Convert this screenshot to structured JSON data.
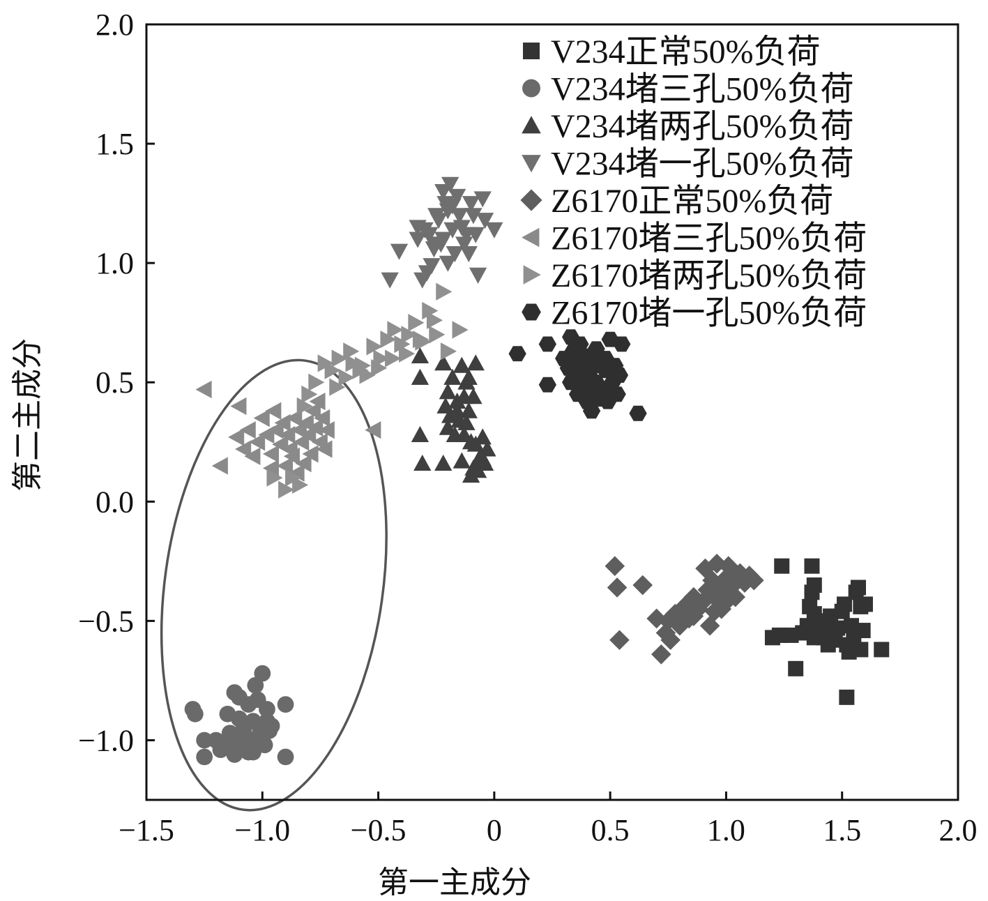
{
  "chart_data": {
    "type": "scatter",
    "xlabel": "第一主成分",
    "ylabel": "第二主成分",
    "xlim": [
      -1.5,
      2.0
    ],
    "ylim": [
      -1.25,
      2.0
    ],
    "xticks": [
      -1.5,
      -1.0,
      -0.5,
      0,
      0.5,
      1.0,
      1.5,
      2.0
    ],
    "xtick_labels": [
      "−1.5",
      "−1.0",
      "−0.5",
      "0",
      "0.5",
      "1.0",
      "1.5",
      "2.0"
    ],
    "yticks": [
      2.0,
      1.5,
      1.0,
      0.5,
      0.0,
      -0.5,
      -1.0
    ],
    "ytick_labels": [
      "2.0",
      "1.5",
      "1.0",
      "0.5",
      "0.0",
      "−0.5",
      "−1.0"
    ],
    "grid": false,
    "legend_position": "top-right",
    "series": [
      {
        "name": "V234正常50%负荷",
        "marker": "square",
        "color": "#333333",
        "points": [
          [
            1.24,
            -0.27
          ],
          [
            1.37,
            -0.27
          ],
          [
            1.2,
            -0.57
          ],
          [
            1.23,
            -0.56
          ],
          [
            1.28,
            -0.56
          ],
          [
            1.3,
            -0.7
          ],
          [
            1.33,
            -0.55
          ],
          [
            1.35,
            -0.52
          ],
          [
            1.36,
            -0.44
          ],
          [
            1.37,
            -0.38
          ],
          [
            1.38,
            -0.35
          ],
          [
            1.38,
            -0.47
          ],
          [
            1.4,
            -0.5
          ],
          [
            1.41,
            -0.55
          ],
          [
            1.42,
            -0.57
          ],
          [
            1.43,
            -0.52
          ],
          [
            1.44,
            -0.6
          ],
          [
            1.45,
            -0.48
          ],
          [
            1.46,
            -0.56
          ],
          [
            1.48,
            -0.53
          ],
          [
            1.5,
            -0.46
          ],
          [
            1.51,
            -0.43
          ],
          [
            1.52,
            -0.6
          ],
          [
            1.53,
            -0.63
          ],
          [
            1.54,
            -0.52
          ],
          [
            1.55,
            -0.56
          ],
          [
            1.56,
            -0.38
          ],
          [
            1.57,
            -0.36
          ],
          [
            1.58,
            -0.44
          ],
          [
            1.58,
            -0.62
          ],
          [
            1.59,
            -0.54
          ],
          [
            1.6,
            -0.43
          ],
          [
            1.38,
            -0.57
          ],
          [
            1.47,
            -0.58
          ],
          [
            1.67,
            -0.62
          ],
          [
            1.52,
            -0.82
          ]
        ]
      },
      {
        "name": "V234堵三孔50%负荷",
        "marker": "circle",
        "color": "#6a6a6a",
        "points": [
          [
            -1.3,
            -0.87
          ],
          [
            -1.29,
            -0.89
          ],
          [
            -1.25,
            -1.0
          ],
          [
            -1.25,
            -1.07
          ],
          [
            -1.2,
            -1.0
          ],
          [
            -1.18,
            -1.04
          ],
          [
            -1.16,
            -1.03
          ],
          [
            -1.15,
            -0.89
          ],
          [
            -1.14,
            -0.97
          ],
          [
            -1.13,
            -1.01
          ],
          [
            -1.12,
            -1.06
          ],
          [
            -1.11,
            -0.98
          ],
          [
            -1.1,
            -0.82
          ],
          [
            -1.1,
            -0.91
          ],
          [
            -1.09,
            -1.03
          ],
          [
            -1.08,
            -0.95
          ],
          [
            -1.07,
            -0.99
          ],
          [
            -1.06,
            -0.85
          ],
          [
            -1.05,
            -1.0
          ],
          [
            -1.04,
            -0.92
          ],
          [
            -1.04,
            -1.05
          ],
          [
            -1.03,
            -0.77
          ],
          [
            -1.02,
            -0.83
          ],
          [
            -1.01,
            -0.97
          ],
          [
            -1.0,
            -0.72
          ],
          [
            -0.99,
            -1.02
          ],
          [
            -0.98,
            -0.92
          ],
          [
            -0.98,
            -0.87
          ],
          [
            -0.97,
            -0.96
          ],
          [
            -0.96,
            -0.94
          ],
          [
            -0.9,
            -0.85
          ],
          [
            -0.9,
            -1.07
          ],
          [
            -1.12,
            -0.8
          ],
          [
            -1.06,
            -1.05
          ],
          [
            -1.0,
            -1.0
          ]
        ]
      },
      {
        "name": "V234堵两孔50%负荷",
        "marker": "triangle-up",
        "color": "#3f3f3f",
        "points": [
          [
            -0.32,
            0.61
          ],
          [
            -0.32,
            0.52
          ],
          [
            -0.32,
            0.28
          ],
          [
            -0.31,
            0.16
          ],
          [
            -0.22,
            0.58
          ],
          [
            -0.22,
            0.16
          ],
          [
            -0.21,
            0.4
          ],
          [
            -0.2,
            0.46
          ],
          [
            -0.19,
            0.36
          ],
          [
            -0.18,
            0.52
          ],
          [
            -0.17,
            0.28
          ],
          [
            -0.16,
            0.42
          ],
          [
            -0.15,
            0.34
          ],
          [
            -0.14,
            0.57
          ],
          [
            -0.14,
            0.17
          ],
          [
            -0.13,
            0.44
          ],
          [
            -0.13,
            0.28
          ],
          [
            -0.12,
            0.5
          ],
          [
            -0.12,
            0.33
          ],
          [
            -0.11,
            0.52
          ],
          [
            -0.11,
            0.38
          ],
          [
            -0.1,
            0.11
          ],
          [
            -0.09,
            0.44
          ],
          [
            -0.09,
            0.14
          ],
          [
            -0.08,
            0.24
          ],
          [
            -0.07,
            0.13
          ],
          [
            -0.06,
            0.19
          ],
          [
            -0.05,
            0.18
          ],
          [
            -0.04,
            0.16
          ],
          [
            -0.03,
            0.22
          ],
          [
            -0.1,
            0.25
          ],
          [
            -0.05,
            0.27
          ],
          [
            -0.16,
            0.38
          ],
          [
            -0.2,
            0.31
          ],
          [
            -0.08,
            0.58
          ]
        ]
      },
      {
        "name": "V234堵一孔50%负荷",
        "marker": "triangle-down",
        "color": "#6f6f6f",
        "points": [
          [
            -0.41,
            1.05
          ],
          [
            -0.45,
            0.93
          ],
          [
            -0.33,
            1.15
          ],
          [
            -0.33,
            1.1
          ],
          [
            -0.31,
            0.93
          ],
          [
            -0.29,
            0.96
          ],
          [
            -0.28,
            1.12
          ],
          [
            -0.27,
            0.99
          ],
          [
            -0.26,
            1.08
          ],
          [
            -0.25,
            1.2
          ],
          [
            -0.24,
            1.18
          ],
          [
            -0.23,
            1.08
          ],
          [
            -0.22,
            1.3
          ],
          [
            -0.22,
            1.1
          ],
          [
            -0.21,
            1.25
          ],
          [
            -0.2,
            1.22
          ],
          [
            -0.2,
            1.0
          ],
          [
            -0.19,
            1.33
          ],
          [
            -0.18,
            1.14
          ],
          [
            -0.17,
            1.04
          ],
          [
            -0.16,
            1.28
          ],
          [
            -0.15,
            1.2
          ],
          [
            -0.14,
            1.15
          ],
          [
            -0.13,
            1.08
          ],
          [
            -0.12,
            1.12
          ],
          [
            -0.11,
            1.04
          ],
          [
            -0.1,
            1.25
          ],
          [
            -0.09,
            1.2
          ],
          [
            -0.08,
            1.12
          ],
          [
            -0.07,
            0.95
          ],
          [
            -0.05,
            1.27
          ],
          [
            -0.04,
            1.18
          ],
          [
            0.0,
            1.14
          ],
          [
            -0.26,
            1.06
          ],
          [
            -0.3,
            1.14
          ],
          [
            -0.18,
            1.24
          ]
        ]
      },
      {
        "name": "Z6170正常50%负荷",
        "marker": "diamond",
        "color": "#5e5e5e",
        "points": [
          [
            0.52,
            -0.27
          ],
          [
            0.53,
            -0.36
          ],
          [
            0.54,
            -0.58
          ],
          [
            0.64,
            -0.35
          ],
          [
            0.7,
            -0.49
          ],
          [
            0.72,
            -0.64
          ],
          [
            0.74,
            -0.55
          ],
          [
            0.75,
            -0.5
          ],
          [
            0.76,
            -0.58
          ],
          [
            0.78,
            -0.47
          ],
          [
            0.8,
            -0.52
          ],
          [
            0.82,
            -0.44
          ],
          [
            0.84,
            -0.49
          ],
          [
            0.86,
            -0.4
          ],
          [
            0.88,
            -0.45
          ],
          [
            0.9,
            -0.42
          ],
          [
            0.91,
            -0.28
          ],
          [
            0.92,
            -0.37
          ],
          [
            0.93,
            -0.52
          ],
          [
            0.94,
            -0.33
          ],
          [
            0.95,
            -0.4
          ],
          [
            0.96,
            -0.26
          ],
          [
            0.97,
            -0.38
          ],
          [
            0.98,
            -0.45
          ],
          [
            0.99,
            -0.33
          ],
          [
            1.0,
            -0.42
          ],
          [
            1.01,
            -0.27
          ],
          [
            1.02,
            -0.36
          ],
          [
            1.03,
            -0.31
          ],
          [
            1.04,
            -0.4
          ],
          [
            1.06,
            -0.3
          ],
          [
            1.08,
            -0.34
          ],
          [
            1.1,
            -0.31
          ],
          [
            1.12,
            -0.33
          ],
          [
            0.95,
            -0.46
          ],
          [
            0.86,
            -0.48
          ]
        ]
      },
      {
        "name": "Z6170堵三孔50%负荷",
        "marker": "triangle-left",
        "color": "#8a8a8a",
        "points": [
          [
            -1.25,
            0.47
          ],
          [
            -1.1,
            0.4
          ],
          [
            -1.18,
            0.15
          ],
          [
            -1.11,
            0.27
          ],
          [
            -1.08,
            0.22
          ],
          [
            -1.06,
            0.3
          ],
          [
            -1.04,
            0.19
          ],
          [
            -1.02,
            0.25
          ],
          [
            -1.0,
            0.35
          ],
          [
            -0.98,
            0.28
          ],
          [
            -0.96,
            0.2
          ],
          [
            -0.95,
            0.38
          ],
          [
            -0.94,
            0.3
          ],
          [
            -0.92,
            0.24
          ],
          [
            -0.91,
            0.33
          ],
          [
            -0.9,
            0.15
          ],
          [
            -0.89,
            0.28
          ],
          [
            -0.88,
            0.22
          ],
          [
            -0.87,
            0.19
          ],
          [
            -0.86,
            0.35
          ],
          [
            -0.85,
            0.12
          ],
          [
            -0.84,
            0.3
          ],
          [
            -0.83,
            0.25
          ],
          [
            -0.82,
            0.16
          ],
          [
            -0.81,
            0.33
          ],
          [
            -0.8,
            0.28
          ],
          [
            -0.79,
            0.2
          ],
          [
            -0.78,
            0.38
          ],
          [
            -0.77,
            0.31
          ],
          [
            -0.76,
            0.42
          ],
          [
            -0.75,
            0.25
          ],
          [
            -0.74,
            0.35
          ],
          [
            -0.73,
            0.22
          ],
          [
            -0.72,
            0.3
          ],
          [
            -0.52,
            0.3
          ],
          [
            -0.96,
            0.14
          ]
        ]
      },
      {
        "name": "Z6170堵两孔50%负荷",
        "marker": "triangle-right",
        "color": "#909090",
        "points": [
          [
            -0.9,
            0.05
          ],
          [
            -0.87,
            0.1
          ],
          [
            -0.84,
            0.07
          ],
          [
            -0.8,
            0.45
          ],
          [
            -0.77,
            0.5
          ],
          [
            -0.73,
            0.58
          ],
          [
            -0.7,
            0.55
          ],
          [
            -0.67,
            0.6
          ],
          [
            -0.64,
            0.52
          ],
          [
            -0.61,
            0.58
          ],
          [
            -0.58,
            0.55
          ],
          [
            -0.55,
            0.53
          ],
          [
            -0.52,
            0.65
          ],
          [
            -0.49,
            0.6
          ],
          [
            -0.46,
            0.68
          ],
          [
            -0.43,
            0.72
          ],
          [
            -0.4,
            0.66
          ],
          [
            -0.37,
            0.7
          ],
          [
            -0.34,
            0.75
          ],
          [
            -0.31,
            0.67
          ],
          [
            -0.28,
            0.8
          ],
          [
            -0.25,
            0.7
          ],
          [
            -0.22,
            0.88
          ],
          [
            -0.2,
            0.63
          ],
          [
            -0.15,
            0.72
          ],
          [
            -0.62,
            0.63
          ],
          [
            -0.57,
            0.57
          ],
          [
            -0.5,
            0.56
          ],
          [
            -0.44,
            0.6
          ],
          [
            -0.38,
            0.62
          ],
          [
            -0.32,
            0.68
          ],
          [
            -0.26,
            0.76
          ],
          [
            -0.68,
            0.48
          ],
          [
            -0.82,
            0.4
          ],
          [
            -0.95,
            0.1
          ]
        ]
      },
      {
        "name": "Z6170堵一孔50%负荷",
        "marker": "hexagon",
        "color": "#2f2f2f",
        "points": [
          [
            0.1,
            0.62
          ],
          [
            0.23,
            0.66
          ],
          [
            0.23,
            0.49
          ],
          [
            0.3,
            0.6
          ],
          [
            0.32,
            0.56
          ],
          [
            0.33,
            0.69
          ],
          [
            0.34,
            0.63
          ],
          [
            0.35,
            0.52
          ],
          [
            0.36,
            0.59
          ],
          [
            0.37,
            0.66
          ],
          [
            0.38,
            0.56
          ],
          [
            0.39,
            0.49
          ],
          [
            0.4,
            0.61
          ],
          [
            0.41,
            0.53
          ],
          [
            0.42,
            0.45
          ],
          [
            0.42,
            0.38
          ],
          [
            0.43,
            0.57
          ],
          [
            0.44,
            0.5
          ],
          [
            0.45,
            0.43
          ],
          [
            0.46,
            0.6
          ],
          [
            0.47,
            0.47
          ],
          [
            0.48,
            0.55
          ],
          [
            0.49,
            0.42
          ],
          [
            0.5,
            0.68
          ],
          [
            0.51,
            0.5
          ],
          [
            0.52,
            0.57
          ],
          [
            0.53,
            0.45
          ],
          [
            0.54,
            0.53
          ],
          [
            0.55,
            0.66
          ],
          [
            0.62,
            0.37
          ],
          [
            0.36,
            0.45
          ],
          [
            0.44,
            0.64
          ],
          [
            0.4,
            0.42
          ],
          [
            0.48,
            0.6
          ],
          [
            0.33,
            0.5
          ]
        ]
      }
    ],
    "annotations": [
      {
        "type": "ellipse",
        "cx": -0.95,
        "cy": -0.35,
        "rx": 0.47,
        "ry": 0.95,
        "rotate_deg": 8,
        "color": "#555555"
      }
    ]
  }
}
